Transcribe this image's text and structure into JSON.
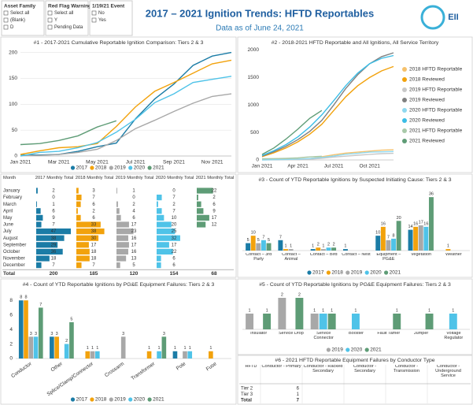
{
  "header": {
    "title": "2017 – 2021 Ignition Trends: HFTD Reportables",
    "subtitle": "Data as of June 24, 2021",
    "logo": "EII"
  },
  "filters": [
    {
      "title": "Asset Family",
      "options": [
        "Select all",
        "(Blank)",
        "D"
      ]
    },
    {
      "title": "Red Flag Warning",
      "options": [
        "Select all",
        "Y",
        "Pending Data"
      ]
    },
    {
      "title": "1/19/21 Event",
      "options": [
        "No",
        "Yes"
      ]
    }
  ],
  "chart_data": [
    {
      "type": "line",
      "title": "#1 - 2017-2021 Cumulative Reportable Ignition Comparison: Tiers 2 & 3",
      "x": [
        "Jan 2021",
        null,
        "Mar 2021",
        null,
        "May 2021",
        null,
        "Jul 2021",
        null,
        "Sep 2021",
        null,
        "Nov 2021",
        null
      ],
      "ylim": [
        0,
        210
      ],
      "yticks": [
        0,
        50,
        100,
        150,
        200
      ],
      "grid": true,
      "legend": "bottom",
      "series": [
        {
          "name": "2017",
          "color": "#1b7ca6",
          "values": [
            2,
            2,
            3,
            9,
            18,
            25,
            72,
            110,
            139,
            175,
            193,
            200
          ]
        },
        {
          "name": "2018",
          "color": "#f2a20c",
          "values": [
            3,
            10,
            16,
            18,
            24,
            57,
            95,
            125,
            142,
            160,
            178,
            185
          ]
        },
        {
          "name": "2019",
          "color": "#a8a8a8",
          "values": [
            1,
            1,
            3,
            7,
            13,
            30,
            53,
            69,
            86,
            102,
            115,
            120
          ]
        },
        {
          "name": "2020",
          "color": "#4fc3e8",
          "values": [
            0,
            7,
            9,
            16,
            26,
            46,
            71,
            103,
            120,
            142,
            148,
            154
          ]
        },
        {
          "name": "2021",
          "color": "#5e9c76",
          "values": [
            22,
            24,
            30,
            39,
            56,
            68,
            null,
            null,
            null,
            null,
            null,
            null
          ]
        }
      ]
    },
    {
      "type": "line",
      "title": "#2 - 2018-2021 HFTD Reportable and All Ignitions, All Service Territory",
      "x": [
        "Jan 2021",
        null,
        null,
        "Apr 2021",
        null,
        null,
        "Jul 2021",
        null,
        null,
        "Oct 2021",
        null,
        null
      ],
      "ylim": [
        0,
        2050
      ],
      "yticks": [
        0,
        500,
        1000,
        1500,
        2000
      ],
      "grid": false,
      "legend": "right",
      "series": [
        {
          "name": "2018 HFTD Reportable",
          "color": "#f5c16c",
          "values": [
            3,
            10,
            16,
            18,
            24,
            57,
            95,
            125,
            142,
            160,
            178,
            185
          ]
        },
        {
          "name": "2018 Reviewed",
          "color": "#f2a20c",
          "values": [
            60,
            130,
            220,
            330,
            470,
            650,
            900,
            1150,
            1350,
            1500,
            1620,
            1700
          ]
        },
        {
          "name": "2019 HFTD Reportable",
          "color": "#c8c8c8",
          "values": [
            1,
            1,
            3,
            7,
            13,
            30,
            53,
            69,
            86,
            102,
            115,
            120
          ]
        },
        {
          "name": "2019 Reviewed",
          "color": "#808080",
          "values": [
            70,
            150,
            250,
            370,
            520,
            720,
            1000,
            1300,
            1550,
            1750,
            1880,
            1950
          ]
        },
        {
          "name": "2020 HFTD Reportable",
          "color": "#8fd8ef",
          "values": [
            0,
            7,
            9,
            16,
            26,
            46,
            71,
            103,
            120,
            142,
            148,
            154
          ]
        },
        {
          "name": "2020 Reviewed",
          "color": "#3bbde6",
          "values": [
            80,
            170,
            280,
            420,
            600,
            820,
            1080,
            1350,
            1580,
            1750,
            1850,
            1900
          ]
        },
        {
          "name": "2021 HFTD Reportable",
          "color": "#a8c9a9",
          "values": [
            22,
            24,
            30,
            39,
            56,
            68,
            null,
            null,
            null,
            null,
            null,
            null
          ]
        },
        {
          "name": "2021 Reviewed",
          "color": "#5e9c76",
          "values": [
            100,
            220,
            380,
            560,
            760,
            900,
            null,
            null,
            null,
            null,
            null,
            null
          ]
        }
      ]
    },
    {
      "type": "bar",
      "title": "#3 - Count of YTD Reportable Ignitions by Suspected Initiating Cause: Tiers 2 & 3",
      "x": [
        "Contact – 3rd Party",
        "Contact – Animal",
        "Contact – Bird",
        "Contact – Nest",
        "Equipment – PG&E",
        "Vegetation",
        "Weather"
      ],
      "legend": "bottom",
      "series": [
        {
          "name": "2017",
          "color": "#1b7ca6",
          "values": [
            5,
            7,
            1,
            1,
            10,
            14,
            null
          ]
        },
        {
          "name": "2018",
          "color": "#f2a20c",
          "values": [
            10,
            1,
            2,
            null,
            16,
            16,
            1
          ]
        },
        {
          "name": "2019",
          "color": "#a8a8a8",
          "values": [
            5,
            1,
            1,
            null,
            7,
            17,
            null
          ]
        },
        {
          "name": "2020",
          "color": "#4fc3e8",
          "values": [
            7,
            null,
            2,
            null,
            8,
            16,
            null
          ]
        },
        {
          "name": "2021",
          "color": "#5e9c76",
          "values": [
            5,
            null,
            2,
            null,
            20,
            36,
            null
          ]
        }
      ]
    },
    {
      "type": "bar",
      "title": "#4 - Count of YTD Reportable Ignitions by PG&E Equipment Failures: Tiers 2 & 3",
      "x": [
        "Conductor",
        "Other",
        "Splice/Clamp/Connector",
        "Crossarm",
        "Transformer",
        "Pole",
        "Fuse"
      ],
      "ylim": [
        0,
        9
      ],
      "yticks": [
        0,
        2,
        4,
        6,
        8
      ],
      "grid": false,
      "legend": "bottom",
      "rotate_labels": true,
      "series": [
        {
          "name": "2017",
          "color": "#1b7ca6",
          "values": [
            8,
            3,
            null,
            null,
            null,
            1,
            null
          ]
        },
        {
          "name": "2018",
          "color": "#f2a20c",
          "values": [
            8,
            3,
            1,
            null,
            1,
            null,
            1
          ]
        },
        {
          "name": "2019",
          "color": "#a8a8a8",
          "values": [
            3,
            null,
            1,
            3,
            null,
            1,
            null
          ]
        },
        {
          "name": "2020",
          "color": "#4fc3e8",
          "values": [
            3,
            2,
            1,
            null,
            1,
            1,
            null
          ]
        },
        {
          "name": "2021",
          "color": "#5e9c76",
          "values": [
            7,
            5,
            null,
            null,
            3,
            null,
            null
          ]
        }
      ]
    },
    {
      "type": "bar",
      "title": "#5 - Count of YTD Reportable Ignitions by PG&E Equipment Failures: Tiers 2 & 3",
      "x": [
        "Insulator",
        "Service Drop",
        "Service Connector",
        "Booster",
        "Fault Tamer",
        "Jumper",
        "Voltage Regulator"
      ],
      "legend": "bottom",
      "series": [
        {
          "name": "2019",
          "color": "#a8a8a8",
          "values": [
            1,
            2,
            1,
            null,
            null,
            null,
            null
          ]
        },
        {
          "name": "2020",
          "color": "#4fc3e8",
          "values": [
            null,
            null,
            1,
            1,
            null,
            null,
            1
          ]
        },
        {
          "name": "2021",
          "color": "#5e9c76",
          "values": [
            1,
            2,
            1,
            null,
            1,
            1,
            null
          ]
        }
      ]
    }
  ],
  "monthly_table": {
    "columns": [
      "Month",
      "2017 Monthly Total",
      "2018 Monthly Total",
      "2019 Monthly Total",
      "2020 Monthly Total",
      "2021 Monthly Total"
    ],
    "months": [
      "January",
      "February",
      "March",
      "April",
      "May",
      "June",
      "July",
      "August",
      "September",
      "October",
      "November",
      "December"
    ],
    "total_label": "Total",
    "totals": [
      200,
      185,
      120,
      154,
      68
    ],
    "series": [
      {
        "color": "#1b7ca6",
        "values": [
          2,
          0,
          1,
          6,
          9,
          7,
          47,
          38,
          29,
          36,
          18,
          7
        ]
      },
      {
        "color": "#f2a20c",
        "values": [
          3,
          7,
          6,
          2,
          6,
          33,
          38,
          30,
          17,
          18,
          18,
          7
        ]
      },
      {
        "color": "#a8a8a8",
        "values": [
          1,
          0,
          2,
          4,
          6,
          17,
          23,
          16,
          17,
          16,
          13,
          5
        ]
      },
      {
        "color": "#4fc3e8",
        "values": [
          0,
          7,
          2,
          7,
          10,
          20,
          25,
          32,
          17,
          22,
          6,
          6
        ]
      },
      {
        "color": "#5e9c76",
        "values": [
          22,
          2,
          6,
          9,
          17,
          12,
          null,
          null,
          null,
          null,
          null,
          null
        ]
      }
    ]
  },
  "conductor_table": {
    "title": "#6 - 2021 HFTD Reportable Equipment Failures by Conductor Type",
    "columns": [
      "HFTD",
      "Conductor - Primary",
      "Conductor - Racked Secondary",
      "Conductor - Secondary",
      "Conductor - Transmission",
      "Conductor - Underground Service"
    ],
    "rows": [
      [
        "Tier 2",
        6
      ],
      [
        "Tier 3",
        1
      ],
      [
        "Total",
        7
      ]
    ]
  }
}
